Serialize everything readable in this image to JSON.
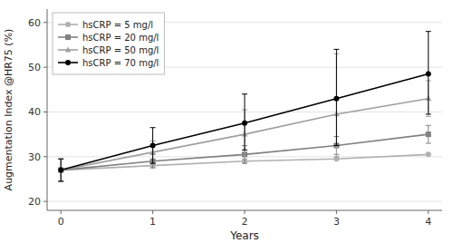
{
  "chart_data": {
    "type": "line",
    "x": [
      0,
      1,
      2,
      3,
      4
    ],
    "series": [
      {
        "name": "hsCRP = 5 mg/l",
        "color": "#b0b0b0",
        "marker": "circle",
        "line_style": "solid",
        "values": [
          27.0,
          28.0,
          29.0,
          29.5,
          30.5
        ],
        "ci_low": [
          24.5,
          null,
          null,
          null,
          null
        ],
        "ci_high": [
          29.5,
          null,
          null,
          null,
          null
        ]
      },
      {
        "name": "hsCRP = 20 mg/l",
        "color": "#808080",
        "marker": "square",
        "line_style": "solid",
        "values": [
          27.0,
          29.0,
          30.5,
          32.5,
          35.0
        ],
        "ci_low": [
          24.5,
          27.5,
          28.5,
          30.5,
          33.0
        ],
        "ci_high": [
          29.5,
          30.5,
          32.5,
          34.5,
          37.0
        ]
      },
      {
        "name": "hsCRP = 50 mg/l",
        "color": "#a0a0a0",
        "marker": "triangle",
        "line_style": "solid",
        "values": [
          27.0,
          31.0,
          35.0,
          39.5,
          43.0
        ],
        "ci_low": [
          24.5,
          28.5,
          29.5,
          30.0,
          39.0
        ],
        "ci_high": [
          29.5,
          33.5,
          40.5,
          53.0,
          47.0
        ]
      },
      {
        "name": "hsCRP = 70 mg/l",
        "color": "#000000",
        "marker": "circle",
        "line_style": "solid",
        "values": [
          27.0,
          32.5,
          37.5,
          43.0,
          48.5
        ],
        "ci_low": [
          24.5,
          28.5,
          31.5,
          32.5,
          39.5
        ],
        "ci_high": [
          29.5,
          36.5,
          44.0,
          54.0,
          58.0
        ]
      }
    ],
    "x_label": "Years",
    "y_label": "Augmentation Index @HR75 (%)",
    "xlim": [
      -0.15,
      4.15
    ],
    "ylim": [
      18,
      63
    ],
    "xticks": [
      0,
      1,
      2,
      3,
      4
    ],
    "yticks": [
      20,
      30,
      40,
      50,
      60
    ],
    "grid": true,
    "legend": "upper left"
  }
}
